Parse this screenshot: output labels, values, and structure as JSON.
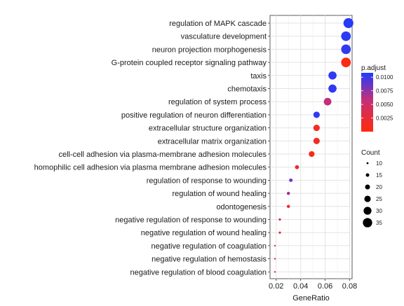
{
  "chart_data": {
    "type": "scatter",
    "xlabel": "GeneRatio",
    "ylabel": "",
    "xlim": [
      0.015,
      0.082
    ],
    "x_ticks": [
      {
        "value": 0.02,
        "label": "0.02"
      },
      {
        "value": 0.04,
        "label": "0.04"
      },
      {
        "value": 0.06,
        "label": "0.06"
      },
      {
        "value": 0.08,
        "label": "0.08"
      }
    ],
    "grid": true,
    "legend_position": "right",
    "color_scale": {
      "title": "p.adjust",
      "min": 0.0,
      "max": 0.0108,
      "low_color": "#FF2A0A",
      "high_color": "#1E3BFF",
      "ticks": [
        {
          "value": 0.0025,
          "label": "0.0025"
        },
        {
          "value": 0.005,
          "label": "0.0050"
        },
        {
          "value": 0.0075,
          "label": "0.0075"
        },
        {
          "value": 0.01,
          "label": "0.0100"
        }
      ]
    },
    "size_scale": {
      "title": "Count",
      "entries": [
        {
          "count": 10,
          "label": "10"
        },
        {
          "count": 15,
          "label": "15"
        },
        {
          "count": 20,
          "label": "20"
        },
        {
          "count": 25,
          "label": "25"
        },
        {
          "count": 30,
          "label": "30"
        },
        {
          "count": 35,
          "label": "35"
        }
      ]
    },
    "points": [
      {
        "term": "regulation of MAPK cascade",
        "gene_ratio": 0.079,
        "count": 37,
        "p_adjust": 0.0106
      },
      {
        "term": "vasculature development",
        "gene_ratio": 0.077,
        "count": 36,
        "p_adjust": 0.0104
      },
      {
        "term": "neuron projection morphogenesis",
        "gene_ratio": 0.077,
        "count": 36,
        "p_adjust": 0.0102
      },
      {
        "term": "G-protein coupled receptor signaling pathway",
        "gene_ratio": 0.077,
        "count": 36,
        "p_adjust": 0.0005
      },
      {
        "term": "taxis",
        "gene_ratio": 0.066,
        "count": 31,
        "p_adjust": 0.0103
      },
      {
        "term": "chemotaxis",
        "gene_ratio": 0.066,
        "count": 31,
        "p_adjust": 0.0103
      },
      {
        "term": "regulation of system process",
        "gene_ratio": 0.062,
        "count": 29,
        "p_adjust": 0.006
      },
      {
        "term": "positive regulation of neuron differentiation",
        "gene_ratio": 0.053,
        "count": 25,
        "p_adjust": 0.0103
      },
      {
        "term": "extracellular structure organization",
        "gene_ratio": 0.053,
        "count": 25,
        "p_adjust": 0.0012
      },
      {
        "term": "extracellular matrix organization",
        "gene_ratio": 0.053,
        "count": 25,
        "p_adjust": 0.0012
      },
      {
        "term": "cell-cell adhesion via plasma-membrane adhesion molecules",
        "gene_ratio": 0.049,
        "count": 23,
        "p_adjust": 0.0005
      },
      {
        "term": "homophilic cell adhesion via plasma membrane adhesion molecules",
        "gene_ratio": 0.037,
        "count": 17,
        "p_adjust": 0.0022
      },
      {
        "term": "regulation of response to wounding",
        "gene_ratio": 0.032,
        "count": 15,
        "p_adjust": 0.0085
      },
      {
        "term": "regulation of wound healing",
        "gene_ratio": 0.03,
        "count": 14,
        "p_adjust": 0.007
      },
      {
        "term": "odontogenesis",
        "gene_ratio": 0.03,
        "count": 14,
        "p_adjust": 0.0018
      },
      {
        "term": "negative regulation of response to wounding",
        "gene_ratio": 0.023,
        "count": 11,
        "p_adjust": 0.004
      },
      {
        "term": "negative regulation of wound healing",
        "gene_ratio": 0.023,
        "count": 11,
        "p_adjust": 0.0025
      },
      {
        "term": "negative regulation of coagulation",
        "gene_ratio": 0.019,
        "count": 9,
        "p_adjust": 0.0035
      },
      {
        "term": "negative regulation of hemostasis",
        "gene_ratio": 0.019,
        "count": 9,
        "p_adjust": 0.0035
      },
      {
        "term": "negative regulation of blood coagulation",
        "gene_ratio": 0.019,
        "count": 9,
        "p_adjust": 0.0035
      }
    ]
  }
}
